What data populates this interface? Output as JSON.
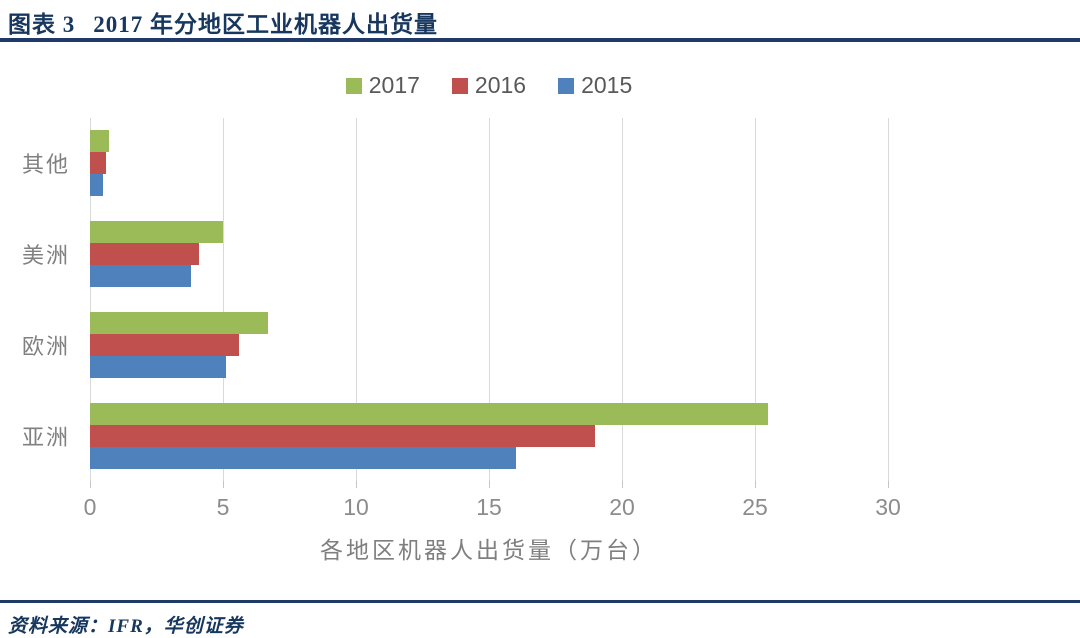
{
  "figure": {
    "label": "图表 3",
    "title": "2017 年分地区工业机器人出货量",
    "source": "资料来源：IFR，华创证券"
  },
  "colors": {
    "navy": "#17375e",
    "rule": "#1f3a68",
    "green": "#9bbb59",
    "red": "#c0504d",
    "blue": "#4f81bd",
    "gridline": "#d9d9d9",
    "axis_text": "#8c8c8c",
    "legend_text": "#595959",
    "category_text": "#808080"
  },
  "chart_data": {
    "type": "bar",
    "orientation": "horizontal",
    "title": "2017 年分地区工业机器人出货量",
    "categories": [
      "其他",
      "美洲",
      "欧洲",
      "亚洲"
    ],
    "series": [
      {
        "name": "2017",
        "color": "#9bbb59",
        "values": [
          0.7,
          5.0,
          6.7,
          25.5
        ]
      },
      {
        "name": "2016",
        "color": "#c0504d",
        "values": [
          0.6,
          4.1,
          5.6,
          19.0
        ]
      },
      {
        "name": "2015",
        "color": "#4f81bd",
        "values": [
          0.5,
          3.8,
          5.1,
          16.0
        ]
      }
    ],
    "xlabel": "各地区机器人出货量（万台）",
    "xlim": [
      0,
      30
    ],
    "xticks": [
      0,
      5,
      10,
      15,
      20,
      25,
      30
    ],
    "legend": [
      "2017",
      "2016",
      "2015"
    ],
    "legend_position": "top",
    "grid": "vertical",
    "unit": "万台"
  }
}
